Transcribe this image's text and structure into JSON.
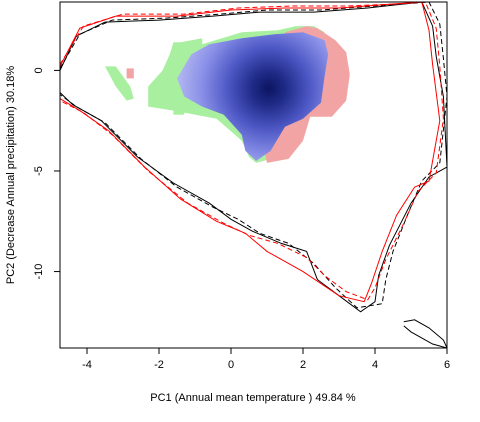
{
  "chart_data": {
    "type": "niche-overlap-density",
    "xlabel": "PC1 (Annual mean temperature ) 49.84 %",
    "ylabel": "PC2 (Decrease Annual precipitation) 30.18%",
    "xlim": [
      -4.75,
      6.0
    ],
    "ylim": [
      -13.8,
      3.4
    ],
    "x_ticks": [
      -4,
      -2,
      0,
      2,
      4,
      6
    ],
    "x_tick_labels": [
      "-4",
      "-2",
      "0",
      "2",
      "4",
      "6"
    ],
    "y_ticks": [
      0,
      -5,
      -10
    ],
    "y_tick_labels": [
      "0",
      "-5",
      "-10"
    ],
    "grid": false,
    "legend": "none",
    "colors": {
      "overlap_blue": "#8a90e8",
      "density_core": "#0c1560",
      "native_only_green": "#a8f0a0",
      "invaded_only_red": "#f2a4a4",
      "environment_contour_black": "#000000",
      "environment_contour_red": "#ff0000"
    },
    "regions": {
      "green_niche": [
        [
          -1.4,
          1.4
        ],
        [
          -0.8,
          1.6
        ],
        [
          -0.8,
          1.3
        ],
        [
          0.3,
          1.9
        ],
        [
          1.3,
          2.0
        ],
        [
          1.8,
          2.2
        ],
        [
          2.3,
          2.2
        ],
        [
          2.6,
          1.9
        ],
        [
          2.4,
          1.2
        ],
        [
          2.3,
          0.1
        ],
        [
          2.0,
          -2.2
        ],
        [
          1.5,
          -3.6
        ],
        [
          1.1,
          -4.4
        ],
        [
          0.7,
          -4.6
        ],
        [
          0.5,
          -4.3
        ],
        [
          0.3,
          -3.5
        ],
        [
          -0.4,
          -2.4
        ],
        [
          -1.6,
          -2.0
        ],
        [
          -2.3,
          -1.8
        ],
        [
          -2.3,
          -0.8
        ],
        [
          -1.9,
          0.0
        ],
        [
          -1.7,
          0.8
        ],
        [
          -1.6,
          1.4
        ]
      ],
      "green_blobs": [
        [
          [
            -3.5,
            0.2
          ],
          [
            -3.2,
            0.2
          ],
          [
            -2.8,
            -0.8
          ],
          [
            -2.7,
            -1.4
          ],
          [
            -2.9,
            -1.5
          ],
          [
            -3.2,
            -0.8
          ]
        ],
        [
          [
            -1.6,
            -2.2
          ],
          [
            -1.6,
            -2.0
          ],
          [
            -1.3,
            -2.0
          ],
          [
            -1.3,
            -2.2
          ]
        ]
      ],
      "red_niche": [
        [
          1.5,
          1.9
        ],
        [
          2.1,
          2.2
        ],
        [
          2.4,
          2.1
        ],
        [
          2.9,
          1.5
        ],
        [
          3.2,
          0.9
        ],
        [
          3.3,
          -0.2
        ],
        [
          3.2,
          -1.5
        ],
        [
          2.8,
          -2.3
        ],
        [
          2.2,
          -2.3
        ],
        [
          2.0,
          -3.5
        ],
        [
          1.6,
          -4.4
        ],
        [
          1.0,
          -4.6
        ],
        [
          0.9,
          -3.8
        ],
        [
          1.2,
          -2.2
        ],
        [
          1.6,
          -0.5
        ]
      ],
      "red_blob": [
        [
          -2.9,
          0.1
        ],
        [
          -2.7,
          0.1
        ],
        [
          -2.7,
          -0.4
        ],
        [
          -2.9,
          -0.4
        ]
      ],
      "blue_overlap": [
        [
          -1.1,
          0.8
        ],
        [
          -0.6,
          1.3
        ],
        [
          0.3,
          1.6
        ],
        [
          1.2,
          1.8
        ],
        [
          2.0,
          1.9
        ],
        [
          2.6,
          1.5
        ],
        [
          2.7,
          0.8
        ],
        [
          2.6,
          -0.3
        ],
        [
          2.5,
          -1.6
        ],
        [
          2.0,
          -2.4
        ],
        [
          1.5,
          -2.8
        ],
        [
          1.1,
          -4.0
        ],
        [
          0.7,
          -4.5
        ],
        [
          0.4,
          -4.0
        ],
        [
          0.3,
          -3.2
        ],
        [
          -0.2,
          -2.2
        ],
        [
          -0.8,
          -1.8
        ],
        [
          -1.3,
          -1.3
        ],
        [
          -1.5,
          -0.4
        ]
      ],
      "density_peak": {
        "x": 1.05,
        "y": -0.9
      }
    },
    "contours": [
      {
        "color": "#000000",
        "dash": "solid",
        "points": [
          [
            -4.75,
            0.0
          ],
          [
            -4.3,
            1.7
          ],
          [
            -3.5,
            2.4
          ],
          [
            -2.0,
            2.5
          ],
          [
            -0.5,
            2.7
          ],
          [
            0.8,
            2.9
          ],
          [
            2.3,
            2.9
          ],
          [
            3.8,
            3.1
          ],
          [
            5.3,
            3.4
          ],
          [
            5.6,
            2.2
          ],
          [
            5.7,
            0.7
          ],
          [
            5.9,
            -1.3
          ],
          [
            6.0,
            -4.8
          ],
          [
            5.5,
            -5.3
          ],
          [
            5.0,
            -6.6
          ],
          [
            4.4,
            -8.7
          ],
          [
            4.1,
            -10.2
          ],
          [
            4.0,
            -11.5
          ],
          [
            3.6,
            -12.0
          ],
          [
            3.0,
            -11.2
          ],
          [
            2.4,
            -10.4
          ],
          [
            2.1,
            -9.0
          ],
          [
            1.4,
            -8.6
          ],
          [
            0.6,
            -8.0
          ],
          [
            0.0,
            -7.4
          ],
          [
            -0.6,
            -6.6
          ],
          [
            -1.6,
            -5.6
          ],
          [
            -2.6,
            -4.3
          ],
          [
            -3.6,
            -2.5
          ],
          [
            -4.4,
            -1.7
          ],
          [
            -4.75,
            -1.1
          ]
        ]
      },
      {
        "color": "#000000",
        "dash": "dashed",
        "points": [
          [
            -4.75,
            0.1
          ],
          [
            -4.2,
            1.8
          ],
          [
            -3.3,
            2.5
          ],
          [
            -1.8,
            2.6
          ],
          [
            -0.3,
            2.8
          ],
          [
            1.0,
            3.0
          ],
          [
            2.5,
            3.0
          ],
          [
            4.0,
            3.2
          ],
          [
            5.5,
            3.4
          ],
          [
            5.8,
            2.3
          ],
          [
            5.9,
            0.6
          ],
          [
            6.0,
            -1.3
          ],
          [
            5.8,
            -4.6
          ],
          [
            5.3,
            -5.5
          ],
          [
            4.9,
            -7.2
          ],
          [
            4.5,
            -9.0
          ],
          [
            4.3,
            -10.4
          ],
          [
            4.2,
            -11.6
          ],
          [
            3.5,
            -11.8
          ],
          [
            2.9,
            -10.8
          ],
          [
            2.3,
            -9.6
          ],
          [
            1.6,
            -8.6
          ],
          [
            0.8,
            -8.1
          ],
          [
            0.2,
            -7.4
          ],
          [
            -0.5,
            -6.8
          ],
          [
            -1.5,
            -5.8
          ],
          [
            -2.5,
            -4.4
          ],
          [
            -3.5,
            -2.6
          ],
          [
            -4.3,
            -1.8
          ],
          [
            -4.75,
            -1.2
          ]
        ]
      },
      {
        "color": "#ff0000",
        "dash": "solid",
        "points": [
          [
            -4.75,
            0.2
          ],
          [
            -4.2,
            2.1
          ],
          [
            -3.2,
            2.7
          ],
          [
            -1.5,
            2.7
          ],
          [
            0.0,
            3.0
          ],
          [
            1.5,
            3.1
          ],
          [
            3.0,
            3.1
          ],
          [
            4.5,
            3.3
          ],
          [
            5.3,
            3.4
          ],
          [
            5.5,
            2.0
          ],
          [
            5.6,
            0.3
          ],
          [
            5.8,
            -2.5
          ],
          [
            5.5,
            -5.5
          ],
          [
            5.1,
            -5.8
          ],
          [
            4.6,
            -7.2
          ],
          [
            4.2,
            -9.0
          ],
          [
            3.9,
            -10.6
          ],
          [
            3.7,
            -11.5
          ],
          [
            3.0,
            -11.2
          ],
          [
            2.0,
            -10.0
          ],
          [
            1.0,
            -9.0
          ],
          [
            0.4,
            -8.1
          ],
          [
            -0.4,
            -7.5
          ],
          [
            -1.4,
            -6.4
          ],
          [
            -2.4,
            -4.8
          ],
          [
            -3.4,
            -3.0
          ],
          [
            -4.2,
            -2.0
          ],
          [
            -4.75,
            -1.4
          ]
        ]
      },
      {
        "color": "#ff0000",
        "dash": "dashed",
        "points": [
          [
            -4.75,
            0.3
          ],
          [
            -4.1,
            2.2
          ],
          [
            -3.0,
            2.8
          ],
          [
            -1.3,
            2.8
          ],
          [
            0.2,
            3.1
          ],
          [
            1.7,
            3.2
          ],
          [
            3.2,
            3.2
          ],
          [
            4.6,
            3.3
          ],
          [
            5.4,
            3.4
          ],
          [
            5.7,
            2.1
          ],
          [
            5.8,
            0.2
          ],
          [
            5.9,
            -2.4
          ],
          [
            5.7,
            -5.1
          ],
          [
            5.2,
            -6.0
          ],
          [
            4.8,
            -7.6
          ],
          [
            4.3,
            -9.4
          ],
          [
            4.0,
            -10.8
          ],
          [
            3.8,
            -11.4
          ],
          [
            3.2,
            -11.0
          ],
          [
            2.6,
            -10.2
          ],
          [
            2.1,
            -9.3
          ],
          [
            1.3,
            -8.6
          ],
          [
            0.5,
            -8.2
          ],
          [
            -0.2,
            -7.6
          ],
          [
            -1.2,
            -6.6
          ],
          [
            -2.3,
            -5.0
          ],
          [
            -3.3,
            -3.2
          ],
          [
            -4.1,
            -2.1
          ],
          [
            -4.75,
            -1.5
          ]
        ]
      },
      {
        "color": "#000000",
        "dash": "solid",
        "points": [
          [
            4.8,
            -12.5
          ],
          [
            5.1,
            -12.4
          ],
          [
            5.5,
            -12.8
          ],
          [
            5.9,
            -13.4
          ],
          [
            6.0,
            -13.8
          ],
          [
            5.6,
            -13.6
          ],
          [
            5.0,
            -13.0
          ],
          [
            4.8,
            -12.7
          ]
        ]
      }
    ]
  }
}
